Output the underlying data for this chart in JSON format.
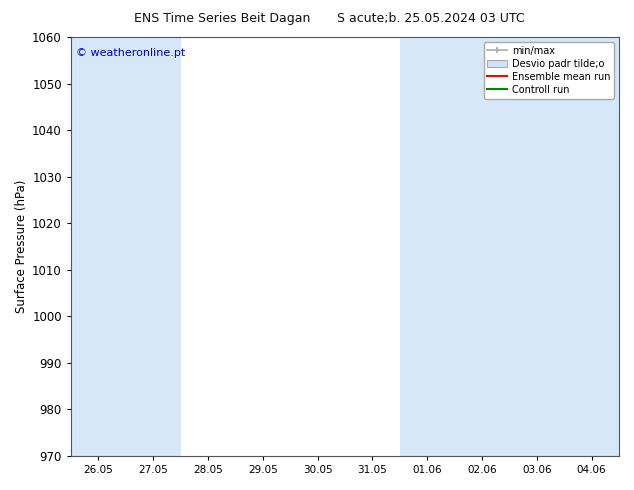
{
  "title_left": "ENS Time Series Beit Dagan",
  "title_right": "S acute;b. 25.05.2024 03 UTC",
  "ylabel": "Surface Pressure (hPa)",
  "ylim": [
    970,
    1060
  ],
  "yticks": [
    970,
    980,
    990,
    1000,
    1010,
    1020,
    1030,
    1040,
    1050,
    1060
  ],
  "xlabel_dates": [
    "26.05",
    "27.05",
    "28.05",
    "29.05",
    "30.05",
    "31.05",
    "01.06",
    "02.06",
    "03.06",
    "04.06"
  ],
  "shaded_indices": [
    0,
    1,
    6,
    7,
    8,
    9
  ],
  "shaded_color": "#d6e8f7",
  "bg_color": "#ffffff",
  "plot_bg_color": "#ffffff",
  "copyright_text": "© weatheronline.pt",
  "copyright_color": "#0000cc",
  "legend_labels": [
    "min/max",
    "Desvio padr tilde;o",
    "Ensemble mean run",
    "Controll run"
  ],
  "legend_line_colors": [
    "#aaaaaa",
    "#cccccc",
    "#ff0000",
    "#008800"
  ],
  "figsize": [
    6.34,
    4.9
  ],
  "dpi": 100
}
